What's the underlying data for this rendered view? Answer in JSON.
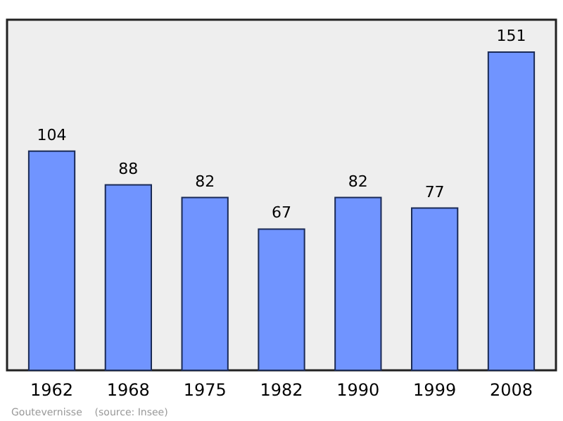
{
  "chart_data": {
    "type": "bar",
    "categories": [
      "1962",
      "1968",
      "1975",
      "1982",
      "1990",
      "1999",
      "2008"
    ],
    "values": [
      104,
      88,
      82,
      67,
      82,
      77,
      151
    ],
    "color": "#7094ff",
    "data_labels": true,
    "annotations": [
      "Goutevernisse    (source: Insee)"
    ]
  }
}
